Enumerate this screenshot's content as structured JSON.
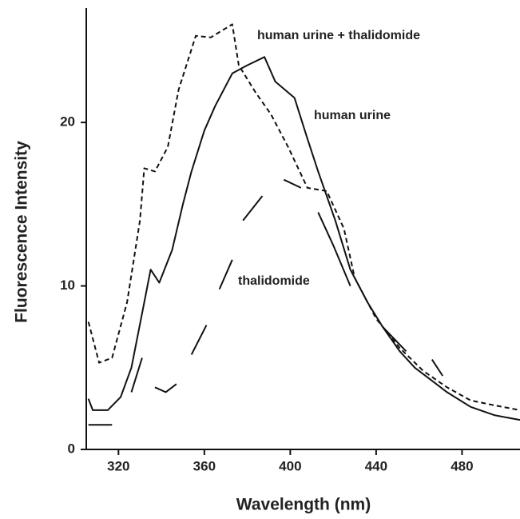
{
  "chart_data": {
    "type": "line",
    "xlabel": "Wavelength (nm)",
    "ylabel": "Fluorescence Intensity",
    "xlim": [
      305,
      507
    ],
    "ylim": [
      0,
      27
    ],
    "xticks": [
      320,
      360,
      400,
      440,
      480
    ],
    "yticks": [
      0,
      10,
      20
    ],
    "series": [
      {
        "name": "human urine + thalidomide",
        "color": "#111111",
        "dash": "6,4",
        "x": [
          306,
          311,
          317,
          324,
          330,
          332,
          337,
          343,
          348,
          356,
          363,
          373,
          376,
          384,
          391,
          399,
          408,
          417,
          425,
          430,
          440,
          451,
          462,
          473,
          484,
          495,
          507
        ],
        "values": [
          7.8,
          5.3,
          5.6,
          9,
          14,
          17.2,
          17,
          18.5,
          22,
          25.3,
          25.2,
          26,
          23.5,
          21.8,
          20.5,
          18.5,
          16,
          15.8,
          13.5,
          10.5,
          8,
          6.2,
          4.8,
          3.8,
          3,
          2.7,
          2.4
        ]
      },
      {
        "name": "human urine",
        "color": "#111111",
        "dash": "none",
        "x": [
          306,
          308,
          315,
          321,
          326,
          332,
          335,
          339,
          345,
          350,
          354,
          360,
          365,
          373,
          380,
          388,
          393,
          402,
          408,
          413,
          421,
          428,
          436,
          443,
          451,
          458,
          466,
          473,
          484,
          495,
          507
        ],
        "values": [
          3.1,
          2.4,
          2.4,
          3.2,
          5,
          9,
          11,
          10.2,
          12.2,
          15,
          17,
          19.5,
          21,
          23,
          23.5,
          24,
          22.5,
          21.5,
          19,
          17,
          14,
          11,
          9,
          7.5,
          6,
          5,
          4.2,
          3.5,
          2.6,
          2.1,
          1.8
        ]
      },
      {
        "name": "thalidomide",
        "color": "#111111",
        "dash": "none",
        "x": [
          306,
          317,
          null,
          326,
          331,
          null,
          337,
          342,
          347,
          null,
          354,
          361,
          null,
          367,
          373,
          null,
          378,
          387,
          null,
          397,
          405,
          null,
          413,
          420,
          428,
          null,
          443,
          454,
          null,
          466,
          471
        ],
        "values": [
          1.5,
          1.5,
          null,
          3.5,
          5.6,
          null,
          3.8,
          3.5,
          4,
          null,
          5.8,
          7.6,
          null,
          9.8,
          11.6,
          null,
          14,
          15.5,
          null,
          16.5,
          16,
          null,
          14.5,
          12.5,
          10,
          null,
          7.5,
          6,
          null,
          5.5,
          4.5
        ]
      }
    ]
  }
}
